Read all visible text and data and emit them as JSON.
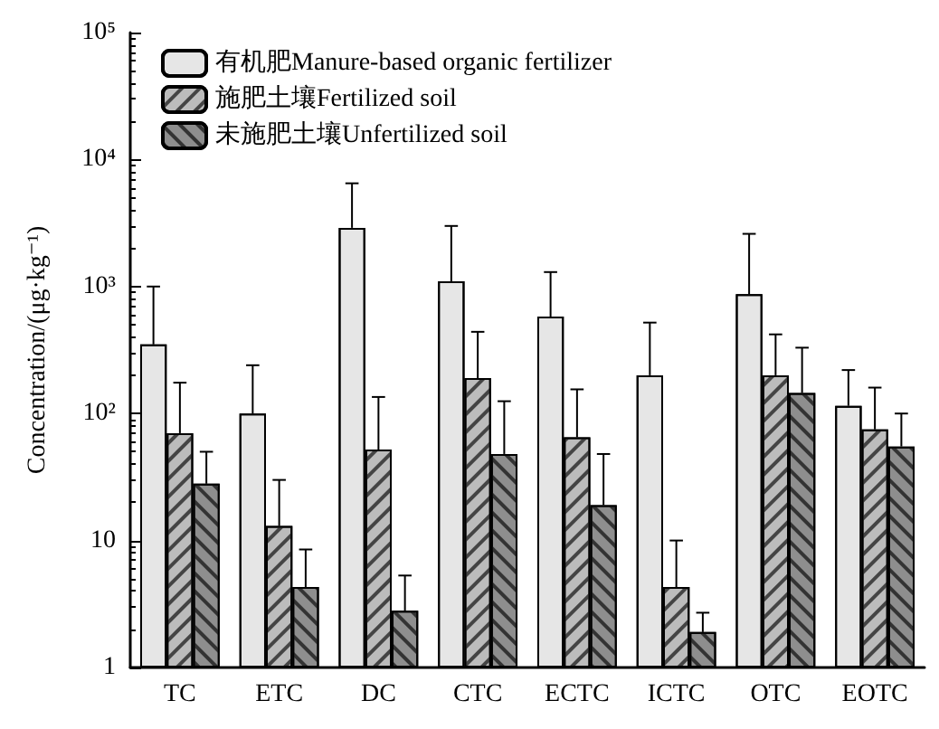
{
  "chart_data": {
    "type": "bar",
    "ylabel": "Concentration/(μg·kg⁻¹)",
    "categories": [
      "TC",
      "ETC",
      "DC",
      "CTC",
      "ECTC",
      "ICTC",
      "OTC",
      "EOTC"
    ],
    "series": [
      {
        "name": "有机肥Manure-based organic fertilizer",
        "color": "#e6e6e6",
        "values": [
          350,
          100,
          2900,
          1100,
          580,
          200,
          870,
          115
        ],
        "errors": [
          [
            350,
            1000
          ],
          [
            100,
            240
          ],
          [
            2900,
            6500
          ],
          [
            1100,
            3000
          ],
          [
            580,
            1300
          ],
          [
            200,
            520
          ],
          [
            870,
            2600
          ],
          [
            115,
            220
          ]
        ]
      },
      {
        "name": "施肥土壤Fertilized soil",
        "color": "#bcbcbc",
        "values": [
          70,
          13,
          52,
          190,
          65,
          4.3,
          200,
          75
        ],
        "errors": [
          [
            70,
            175
          ],
          [
            13,
            30
          ],
          [
            52,
            135
          ],
          [
            190,
            440
          ],
          [
            65,
            155
          ],
          [
            4.3,
            10
          ],
          [
            200,
            420
          ],
          [
            75,
            160
          ]
        ]
      },
      {
        "name": "未施肥土壤Unfertilized soil",
        "color": "#8e8e8e",
        "values": [
          28,
          4.3,
          2.8,
          48,
          19,
          1.9,
          145,
          55
        ],
        "errors": [
          [
            28,
            50
          ],
          [
            4.3,
            8.5
          ],
          [
            2.8,
            5.3
          ],
          [
            48,
            125
          ],
          [
            19,
            48
          ],
          [
            1.9,
            2.7
          ],
          [
            145,
            330
          ],
          [
            55,
            100
          ]
        ]
      }
    ],
    "log": "y",
    "ylim": [
      1,
      100000
    ],
    "yticks": [
      1,
      10,
      {
        "value": 100,
        "label": "10²"
      },
      {
        "value": 1000,
        "label": "10³"
      },
      {
        "value": 10000,
        "label": "10⁴"
      },
      {
        "value": 100000,
        "label": "10⁵"
      }
    ],
    "legend": "top left",
    "grid": false
  }
}
